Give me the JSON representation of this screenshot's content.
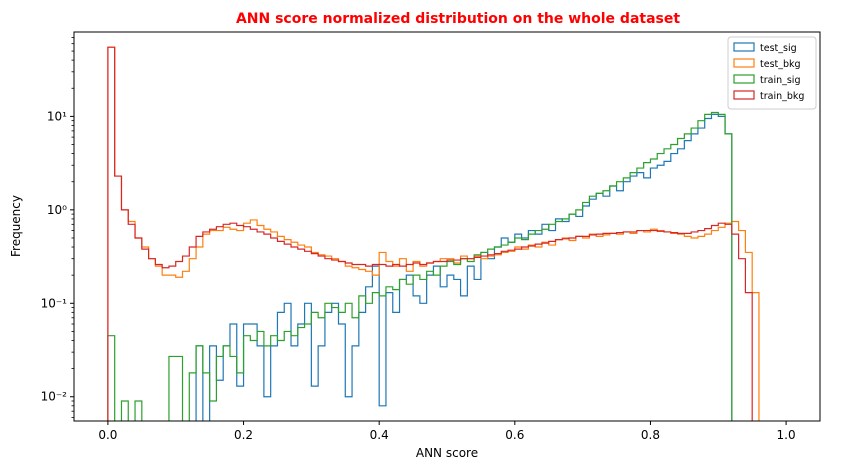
{
  "chart_data": {
    "type": "histogram",
    "title": "ANN score normalized distribution on the whole dataset",
    "title_color": "#ff0000",
    "xlabel": "ANN score",
    "ylabel": "Frequency",
    "xlim": [
      -0.05,
      1.05
    ],
    "ylim": [
      0.0055,
      80
    ],
    "yscale": "log",
    "bin_width": 0.01,
    "x_ticks": [
      0.0,
      0.2,
      0.4,
      0.6,
      0.8,
      1.0
    ],
    "x_tick_labels": [
      "0.0",
      "0.2",
      "0.4",
      "0.6",
      "0.8",
      "1.0"
    ],
    "y_ticks": [
      0.01,
      0.1,
      1,
      10
    ],
    "y_tick_labels": [
      "10⁻²",
      "10⁻¹",
      "10⁰",
      "10¹"
    ],
    "legend_location": "top-right",
    "series": [
      {
        "name": "test_sig",
        "color": "#1f77b4",
        "values": [
          0,
          0,
          0,
          0,
          0,
          0,
          0,
          0,
          0,
          0,
          0,
          0,
          0,
          0.035,
          0,
          0.035,
          0.015,
          0.035,
          0.06,
          0.013,
          0.06,
          0.06,
          0.035,
          0.01,
          0.035,
          0.08,
          0.1,
          0.035,
          0.06,
          0.1,
          0.013,
          0.035,
          0.08,
          0.1,
          0.06,
          0.01,
          0.035,
          0.08,
          0.15,
          0.25,
          0.008,
          0.13,
          0.08,
          0.18,
          0.2,
          0.12,
          0.1,
          0.2,
          0.25,
          0.15,
          0.2,
          0.18,
          0.12,
          0.25,
          0.18,
          0.35,
          0.3,
          0.4,
          0.5,
          0.45,
          0.55,
          0.5,
          0.6,
          0.55,
          0.7,
          0.6,
          0.8,
          0.75,
          0.9,
          0.85,
          1.1,
          1.3,
          1.5,
          1.4,
          1.8,
          1.6,
          2.0,
          2.3,
          2.5,
          2.2,
          2.8,
          3.0,
          3.3,
          4.0,
          4.5,
          5.5,
          6.5,
          7.5,
          9.5,
          10.5,
          10.0,
          6.5,
          0,
          0,
          0,
          0,
          0,
          0,
          0,
          0
        ]
      },
      {
        "name": "test_bkg",
        "color": "#ff7f0e",
        "values": [
          55,
          2.3,
          1.0,
          0.75,
          0.5,
          0.4,
          0.3,
          0.25,
          0.2,
          0.2,
          0.19,
          0.22,
          0.3,
          0.4,
          0.55,
          0.6,
          0.6,
          0.65,
          0.62,
          0.6,
          0.72,
          0.78,
          0.68,
          0.62,
          0.58,
          0.52,
          0.48,
          0.45,
          0.42,
          0.4,
          0.35,
          0.33,
          0.32,
          0.3,
          0.28,
          0.25,
          0.24,
          0.23,
          0.22,
          0.2,
          0.35,
          0.28,
          0.25,
          0.3,
          0.22,
          0.28,
          0.25,
          0.27,
          0.28,
          0.3,
          0.3,
          0.27,
          0.32,
          0.3,
          0.32,
          0.3,
          0.32,
          0.33,
          0.35,
          0.36,
          0.4,
          0.38,
          0.42,
          0.4,
          0.45,
          0.42,
          0.48,
          0.5,
          0.47,
          0.52,
          0.5,
          0.55,
          0.52,
          0.54,
          0.56,
          0.55,
          0.58,
          0.56,
          0.6,
          0.58,
          0.62,
          0.6,
          0.58,
          0.56,
          0.55,
          0.52,
          0.5,
          0.52,
          0.55,
          0.6,
          0.65,
          0.72,
          0.75,
          0.6,
          0.35,
          0.13,
          0,
          0,
          0,
          0
        ]
      },
      {
        "name": "train_sig",
        "color": "#2ca02c",
        "values": [
          0.045,
          0,
          0.009,
          0,
          0.009,
          0,
          0,
          0,
          0,
          0.027,
          0.027,
          0,
          0.018,
          0.035,
          0.018,
          0.009,
          0.027,
          0.035,
          0.027,
          0.018,
          0.045,
          0.04,
          0.05,
          0.035,
          0.045,
          0.04,
          0.05,
          0.045,
          0.055,
          0.06,
          0.08,
          0.07,
          0.1,
          0.09,
          0.08,
          0.1,
          0.07,
          0.12,
          0.1,
          0.13,
          0.12,
          0.15,
          0.14,
          0.18,
          0.16,
          0.2,
          0.18,
          0.22,
          0.2,
          0.25,
          0.28,
          0.26,
          0.3,
          0.28,
          0.33,
          0.35,
          0.38,
          0.4,
          0.42,
          0.45,
          0.5,
          0.48,
          0.55,
          0.6,
          0.62,
          0.7,
          0.75,
          0.8,
          0.9,
          1.0,
          1.2,
          1.4,
          1.5,
          1.6,
          1.8,
          2.0,
          2.2,
          2.5,
          2.8,
          3.2,
          3.5,
          4.0,
          4.5,
          5.0,
          5.8,
          6.5,
          7.5,
          9.0,
          10.5,
          11.0,
          10.5,
          6.5,
          0,
          0,
          0,
          0,
          0,
          0,
          0,
          0
        ]
      },
      {
        "name": "train_bkg",
        "color": "#d62728",
        "values": [
          55,
          2.3,
          1.0,
          0.7,
          0.5,
          0.38,
          0.3,
          0.26,
          0.24,
          0.25,
          0.28,
          0.32,
          0.4,
          0.52,
          0.58,
          0.62,
          0.66,
          0.7,
          0.72,
          0.68,
          0.66,
          0.62,
          0.58,
          0.55,
          0.5,
          0.46,
          0.43,
          0.4,
          0.38,
          0.36,
          0.34,
          0.32,
          0.3,
          0.29,
          0.28,
          0.27,
          0.26,
          0.26,
          0.25,
          0.26,
          0.26,
          0.25,
          0.26,
          0.25,
          0.26,
          0.27,
          0.26,
          0.27,
          0.28,
          0.28,
          0.29,
          0.29,
          0.3,
          0.3,
          0.31,
          0.32,
          0.33,
          0.34,
          0.36,
          0.37,
          0.38,
          0.4,
          0.41,
          0.43,
          0.44,
          0.46,
          0.48,
          0.49,
          0.5,
          0.52,
          0.52,
          0.54,
          0.55,
          0.56,
          0.56,
          0.57,
          0.58,
          0.58,
          0.6,
          0.6,
          0.6,
          0.59,
          0.58,
          0.57,
          0.56,
          0.56,
          0.58,
          0.6,
          0.63,
          0.68,
          0.72,
          0.7,
          0.55,
          0.3,
          0.13,
          0,
          0,
          0,
          0,
          0
        ]
      }
    ]
  }
}
